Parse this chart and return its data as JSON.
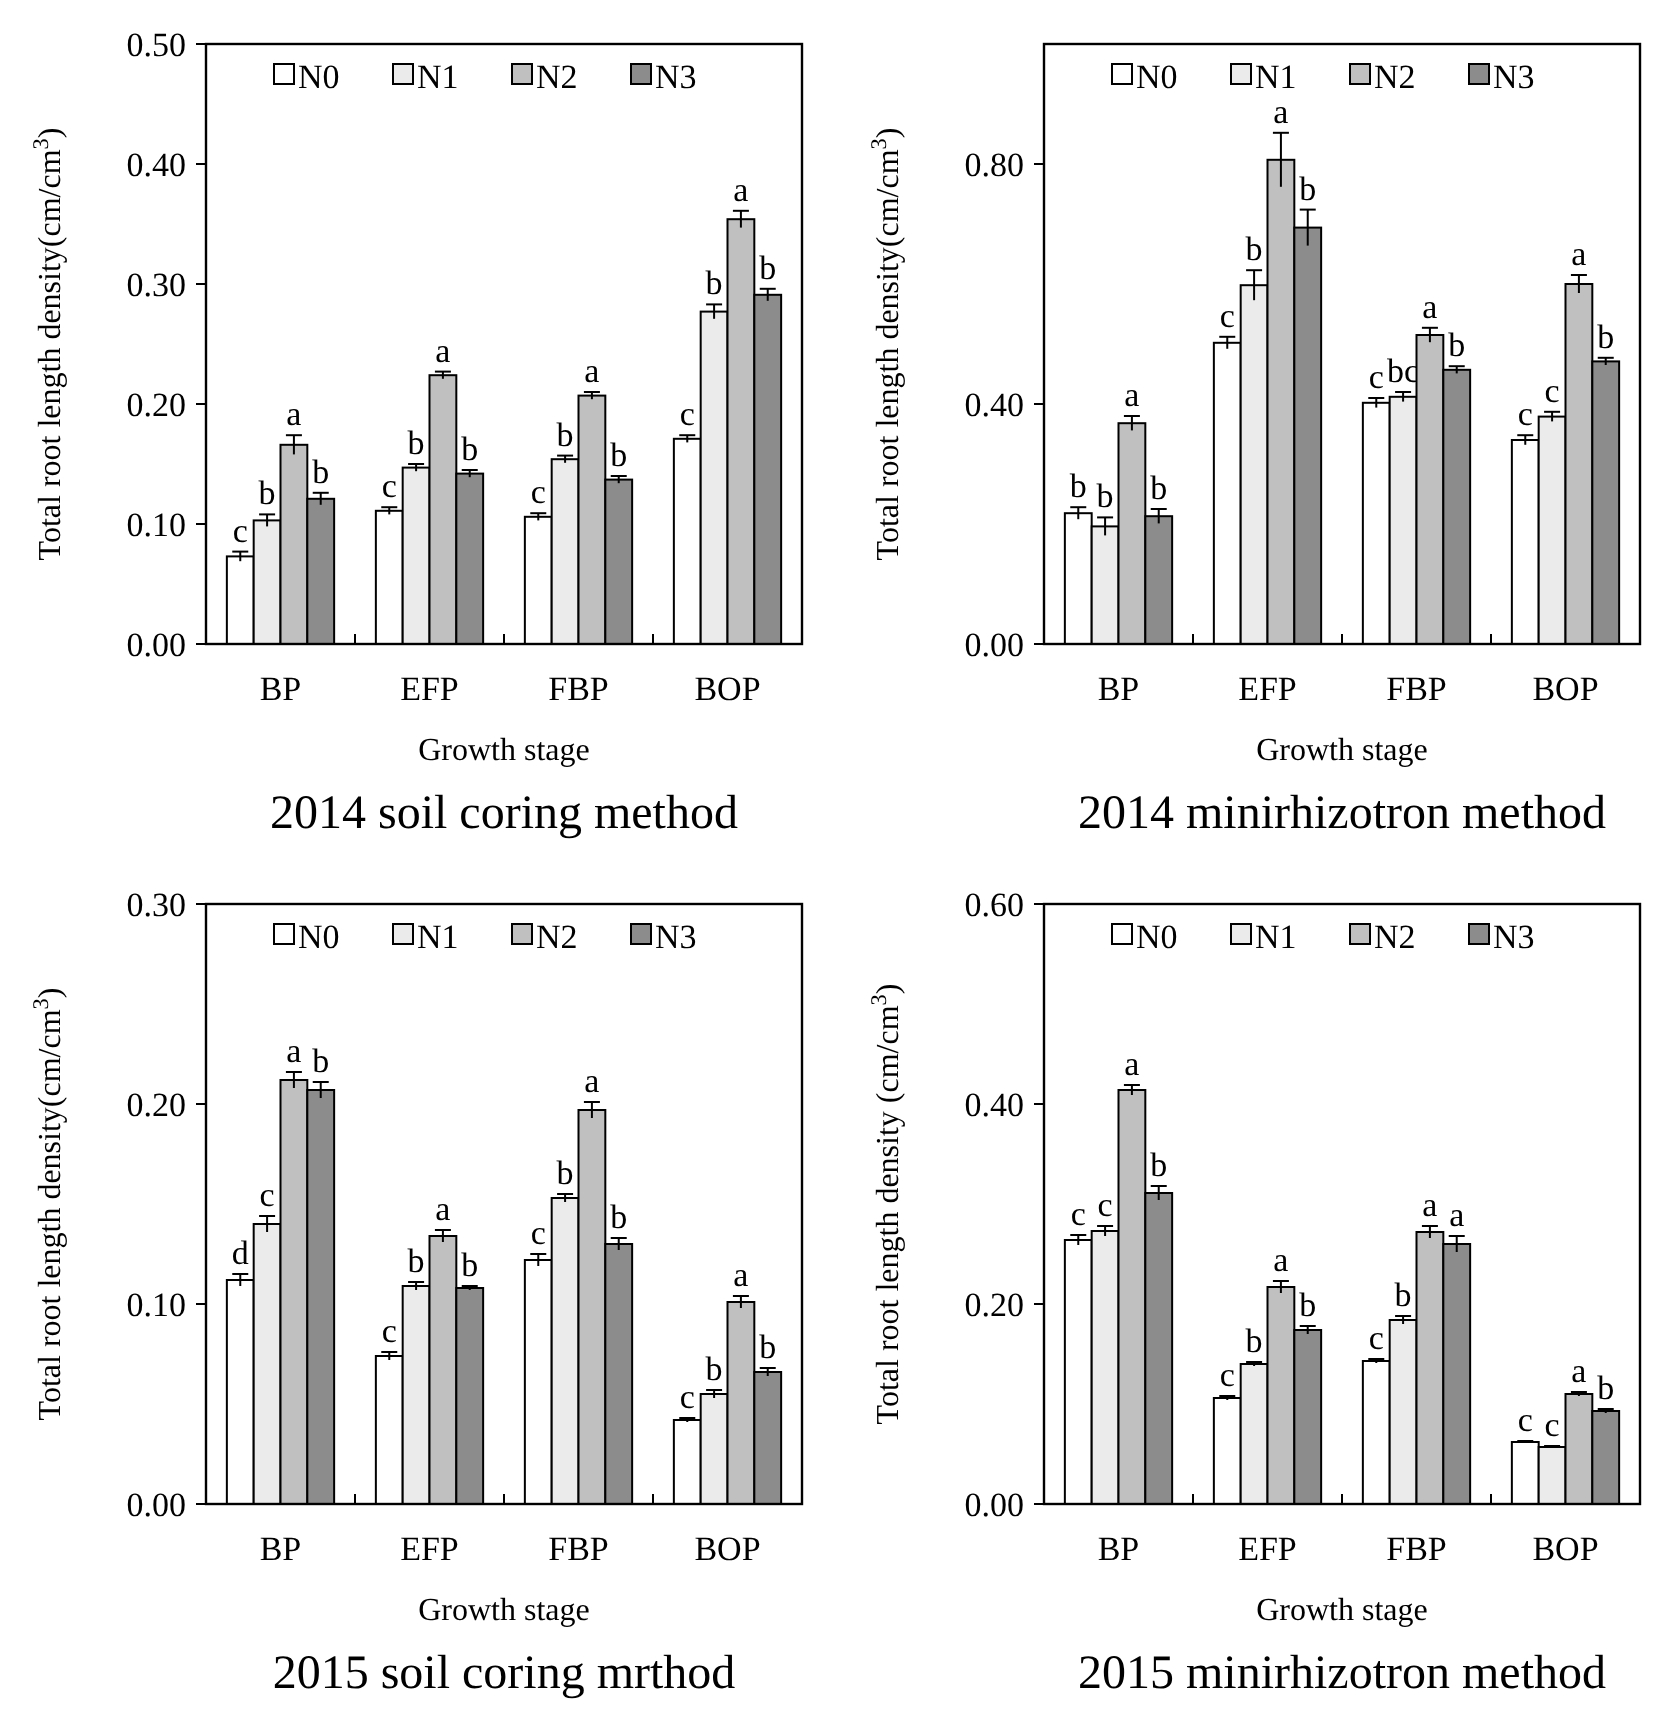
{
  "chart_data": [
    {
      "type": "bar",
      "title": "2014 soil coring method",
      "xlabel": "Growth stage",
      "ylabel": "Total root length  density(cm/cm$^{3}$)",
      "categories": [
        "BP",
        "EFP",
        "FBP",
        "BOP"
      ],
      "legend": "top",
      "ylim": [
        0,
        0.5
      ],
      "yticks": [
        {
          "value": 0,
          "label": "0.00"
        },
        {
          "value": 0.1,
          "label": "0.10"
        },
        {
          "value": 0.2,
          "label": "0.20"
        },
        {
          "value": 0.3,
          "label": "0.30"
        },
        {
          "value": 0.4,
          "label": "0.40"
        },
        {
          "value": 0.5,
          "label": "0.50"
        }
      ],
      "series": [
        {
          "name": "N0",
          "color": "#ffffff",
          "values": [
            0.073,
            0.111,
            0.106,
            0.171
          ],
          "errors": [
            0.004,
            0.003,
            0.003,
            0.003
          ],
          "value_labels": [
            "c",
            "c",
            "c",
            "c"
          ]
        },
        {
          "name": "N1",
          "color": "#ebebeb",
          "values": [
            0.103,
            0.147,
            0.154,
            0.277
          ],
          "errors": [
            0.005,
            0.003,
            0.003,
            0.006
          ],
          "value_labels": [
            "b",
            "b",
            "b",
            "b"
          ]
        },
        {
          "name": "N2",
          "color": "#c0c0c0",
          "values": [
            0.166,
            0.224,
            0.207,
            0.354
          ],
          "errors": [
            0.008,
            0.003,
            0.003,
            0.007
          ],
          "value_labels": [
            "a",
            "a",
            "a",
            "a"
          ]
        },
        {
          "name": "N3",
          "color": "#8c8c8c",
          "values": [
            0.121,
            0.142,
            0.137,
            0.291
          ],
          "errors": [
            0.005,
            0.003,
            0.003,
            0.005
          ],
          "value_labels": [
            "b",
            "b",
            "b",
            "b"
          ]
        }
      ]
    },
    {
      "type": "bar",
      "title": "2014 minirhizotron method",
      "xlabel": "Growth stage",
      "ylabel": "Total root length  density(cm/cm$^{3}$)",
      "categories": [
        "BP",
        "EFP",
        "FBP",
        "BOP"
      ],
      "legend": "top",
      "ylim": [
        0,
        1.0
      ],
      "yticks": [
        {
          "value": 0,
          "label": "0.00"
        },
        {
          "value": 0.4,
          "label": "0.40"
        },
        {
          "value": 0.8,
          "label": "0.80"
        }
      ],
      "series": [
        {
          "name": "N0",
          "color": "#ffffff",
          "values": [
            0.218,
            0.502,
            0.402,
            0.34
          ],
          "errors": [
            0.01,
            0.01,
            0.008,
            0.008
          ],
          "value_labels": [
            "b",
            "c",
            "c",
            "c"
          ]
        },
        {
          "name": "N1",
          "color": "#ebebeb",
          "values": [
            0.196,
            0.598,
            0.412,
            0.379
          ],
          "errors": [
            0.015,
            0.025,
            0.008,
            0.008
          ],
          "value_labels": [
            "b",
            "b",
            "bc",
            "c"
          ]
        },
        {
          "name": "N2",
          "color": "#c0c0c0",
          "values": [
            0.368,
            0.807,
            0.515,
            0.6
          ],
          "errors": [
            0.012,
            0.045,
            0.012,
            0.015
          ],
          "value_labels": [
            "a",
            "a",
            "a",
            "a"
          ]
        },
        {
          "name": "N3",
          "color": "#8c8c8c",
          "values": [
            0.213,
            0.694,
            0.457,
            0.471
          ],
          "errors": [
            0.012,
            0.03,
            0.006,
            0.006
          ],
          "value_labels": [
            "b",
            "b",
            "b",
            "b"
          ]
        }
      ]
    },
    {
      "type": "bar",
      "title": "2015 soil coring mrthod",
      "xlabel": "Growth stage",
      "ylabel": "Total root length  density(cm/cm$^{3}$)",
      "categories": [
        "BP",
        "EFP",
        "FBP",
        "BOP"
      ],
      "legend": "top",
      "ylim": [
        0,
        0.3
      ],
      "yticks": [
        {
          "value": 0,
          "label": "0.00"
        },
        {
          "value": 0.1,
          "label": "0.10"
        },
        {
          "value": 0.2,
          "label": "0.20"
        },
        {
          "value": 0.3,
          "label": "0.30"
        }
      ],
      "series": [
        {
          "name": "N0",
          "color": "#ffffff",
          "values": [
            0.112,
            0.074,
            0.122,
            0.042
          ],
          "errors": [
            0.003,
            0.002,
            0.003,
            0.001
          ],
          "value_labels": [
            "d",
            "c",
            "c",
            "c"
          ]
        },
        {
          "name": "N1",
          "color": "#ebebeb",
          "values": [
            0.14,
            0.109,
            0.153,
            0.055
          ],
          "errors": [
            0.004,
            0.002,
            0.002,
            0.002
          ],
          "value_labels": [
            "c",
            "b",
            "b",
            "b"
          ]
        },
        {
          "name": "N2",
          "color": "#c0c0c0",
          "values": [
            0.212,
            0.134,
            0.197,
            0.101
          ],
          "errors": [
            0.004,
            0.003,
            0.004,
            0.003
          ],
          "value_labels": [
            "a",
            "a",
            "a",
            "a"
          ]
        },
        {
          "name": "N3",
          "color": "#8c8c8c",
          "values": [
            0.207,
            0.108,
            0.13,
            0.066
          ],
          "errors": [
            0.004,
            0.001,
            0.003,
            0.002
          ],
          "value_labels": [
            "b",
            "b",
            "b",
            "b"
          ]
        }
      ]
    },
    {
      "type": "bar",
      "title": "2015 minirhizotron method",
      "xlabel": "Growth stage",
      "ylabel": "Total root length  density (cm/cm$^{3}$)",
      "categories": [
        "BP",
        "EFP",
        "FBP",
        "BOP"
      ],
      "legend": "top",
      "ylim": [
        0,
        0.6
      ],
      "yticks": [
        {
          "value": 0,
          "label": "0.00"
        },
        {
          "value": 0.2,
          "label": "0.20"
        },
        {
          "value": 0.4,
          "label": "0.40"
        },
        {
          "value": 0.6,
          "label": "0.60"
        }
      ],
      "series": [
        {
          "name": "N0",
          "color": "#ffffff",
          "values": [
            0.264,
            0.106,
            0.143,
            0.062
          ],
          "errors": [
            0.005,
            0.002,
            0.002,
            0.001
          ],
          "value_labels": [
            "c",
            "c",
            "c",
            "c"
          ]
        },
        {
          "name": "N1",
          "color": "#ebebeb",
          "values": [
            0.273,
            0.14,
            0.184,
            0.057
          ],
          "errors": [
            0.005,
            0.002,
            0.004,
            0.001
          ],
          "value_labels": [
            "c",
            "b",
            "b",
            "c"
          ]
        },
        {
          "name": "N2",
          "color": "#c0c0c0",
          "values": [
            0.414,
            0.217,
            0.272,
            0.11
          ],
          "errors": [
            0.005,
            0.006,
            0.006,
            0.002
          ],
          "value_labels": [
            "a",
            "a",
            "a",
            "a"
          ]
        },
        {
          "name": "N3",
          "color": "#8c8c8c",
          "values": [
            0.311,
            0.174,
            0.26,
            0.093
          ],
          "errors": [
            0.007,
            0.004,
            0.008,
            0.002
          ],
          "value_labels": [
            "b",
            "b",
            "a",
            "b"
          ]
        }
      ]
    }
  ]
}
